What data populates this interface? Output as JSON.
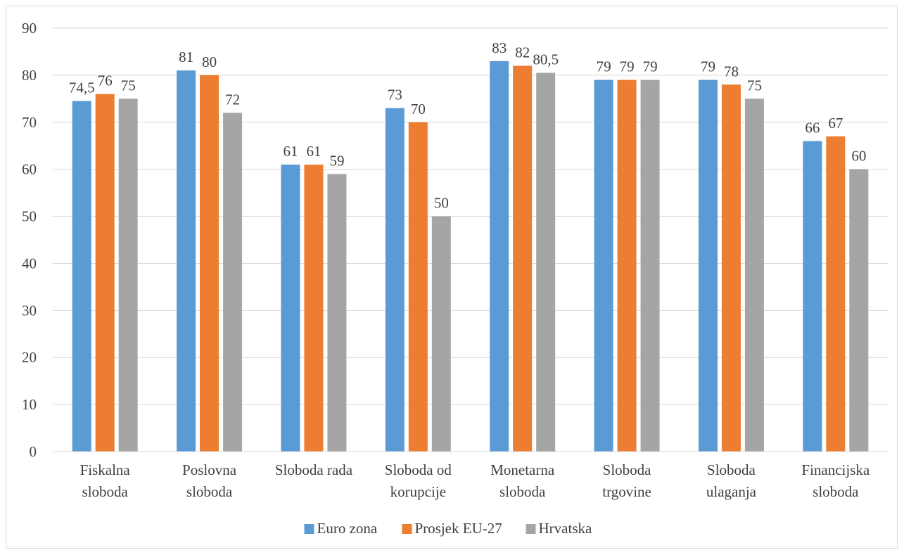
{
  "chart_data": {
    "type": "bar",
    "title": "",
    "xlabel": "",
    "ylabel": "",
    "ylim": [
      0,
      90
    ],
    "yticks": [
      0,
      10,
      20,
      30,
      40,
      50,
      60,
      70,
      80,
      90
    ],
    "grid": true,
    "legend_position": "bottom",
    "categories": [
      [
        "Fiskalna",
        "sloboda"
      ],
      [
        "Poslovna",
        "sloboda"
      ],
      [
        "Sloboda rada"
      ],
      [
        "Sloboda od",
        "korupcije"
      ],
      [
        "Monetarna",
        "sloboda"
      ],
      [
        "Sloboda",
        "trgovine"
      ],
      [
        "Sloboda",
        "ulaganja"
      ],
      [
        "Financijska",
        "sloboda"
      ]
    ],
    "series": [
      {
        "name": "Euro zona",
        "color": "#5b9bd5",
        "values": [
          74.5,
          81,
          61,
          73,
          83,
          79,
          79,
          66
        ],
        "labels": [
          "74,5",
          "81",
          "61",
          "73",
          "83",
          "79",
          "79",
          "66"
        ]
      },
      {
        "name": "Prosjek EU-27",
        "color": "#ed7d31",
        "values": [
          76,
          80,
          61,
          70,
          82,
          79,
          78,
          67
        ],
        "labels": [
          "76",
          "80",
          "61",
          "70",
          "82",
          "79",
          "78",
          "67"
        ]
      },
      {
        "name": "Hrvatska",
        "color": "#a5a5a5",
        "values": [
          75,
          72,
          59,
          50,
          80.5,
          79,
          75,
          60
        ],
        "labels": [
          "75",
          "72",
          "59",
          "50",
          "80,5",
          "79",
          "75",
          "60"
        ]
      }
    ]
  }
}
